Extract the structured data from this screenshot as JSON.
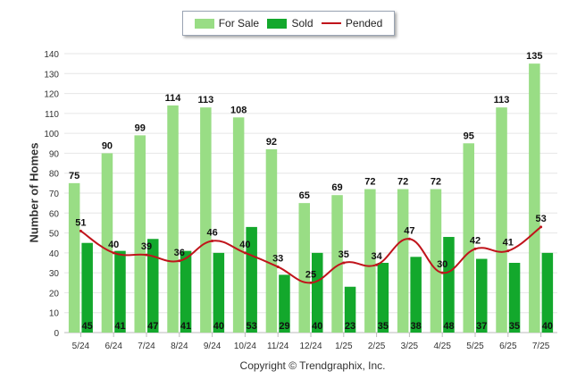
{
  "legend": {
    "for_sale": "For Sale",
    "sold": "Sold",
    "pended": "Pended"
  },
  "footer": "Copyright © Trendgraphix, Inc.",
  "chart_data": {
    "type": "bar",
    "ylabel": "Number of Homes",
    "ylim": [
      0,
      140
    ],
    "yticks": [
      0,
      10,
      20,
      30,
      40,
      50,
      60,
      70,
      80,
      90,
      100,
      110,
      120,
      130,
      140
    ],
    "grid": true,
    "legend_position": "top-center",
    "categories": [
      "5/24",
      "6/24",
      "7/24",
      "8/24",
      "9/24",
      "10/24",
      "11/24",
      "12/24",
      "1/25",
      "2/25",
      "3/25",
      "4/25",
      "5/25",
      "6/25",
      "7/25"
    ],
    "series": [
      {
        "name": "For Sale",
        "type": "bar",
        "color": "#99dd85",
        "values": [
          75,
          90,
          99,
          114,
          113,
          108,
          92,
          65,
          69,
          72,
          72,
          72,
          95,
          113,
          135
        ]
      },
      {
        "name": "Sold",
        "type": "bar",
        "color": "#13a82c",
        "values": [
          45,
          41,
          47,
          41,
          40,
          53,
          29,
          40,
          23,
          35,
          38,
          48,
          37,
          35,
          40
        ]
      },
      {
        "name": "Pended",
        "type": "line",
        "color": "#c0141b",
        "values": [
          51,
          40,
          39,
          36,
          46,
          40,
          33,
          25,
          35,
          34,
          47,
          30,
          42,
          41,
          53
        ]
      }
    ]
  }
}
